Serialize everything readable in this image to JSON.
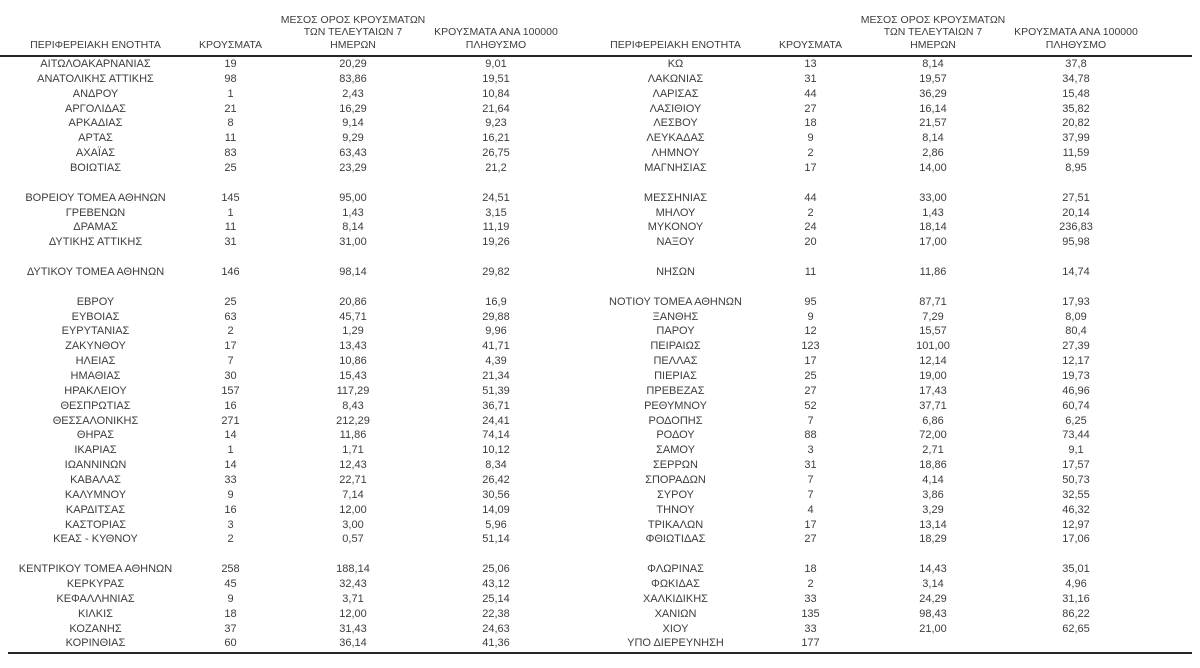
{
  "headers": {
    "region": "ΠΕΡΙΦΕΡΕΙΑΚΗ ΕΝΟΤΗΤΑ",
    "cases": "ΚΡΟΥΣΜΑΤΑ",
    "avg7_lines": [
      "ΜΕΣΟΣ ΟΡΟΣ ΚΡΟΥΣΜΑΤΩΝ",
      "ΤΩΝ ΤΕΛΕΥΤΑΙΩΝ 7",
      "ΗΜΕΡΩΝ"
    ],
    "per100k_lines": [
      "ΚΡΟΥΣΜΑΤΑ ΑΝΑ 100000",
      "ΠΛΗΘΥΣΜΟ"
    ]
  },
  "colors": {
    "text": "#3d3d3d",
    "rule": "#262626",
    "background": "#ffffff"
  },
  "left_table": {
    "rows": [
      [
        "ΑΙΤΩΛΟΑΚΑΡΝΑΝΙΑΣ",
        "19",
        "20,29",
        "9,01"
      ],
      [
        "ΑΝΑΤΟΛΙΚΗΣ ΑΤΤΙΚΗΣ",
        "98",
        "83,86",
        "19,51"
      ],
      [
        "ΑΝΔΡΟΥ",
        "1",
        "2,43",
        "10,84"
      ],
      [
        "ΑΡΓΟΛΙΔΑΣ",
        "21",
        "16,29",
        "21,64"
      ],
      [
        "ΑΡΚΑΔΙΑΣ",
        "8",
        "9,14",
        "9,23"
      ],
      [
        "ΑΡΤΑΣ",
        "11",
        "9,29",
        "16,21"
      ],
      [
        "ΑΧΑΪΑΣ",
        "83",
        "63,43",
        "26,75"
      ],
      [
        "ΒΟΙΩΤΙΑΣ",
        "25",
        "23,29",
        "21,2"
      ],
      [
        "",
        "",
        "",
        ""
      ],
      [
        "ΒΟΡΕΙΟΥ ΤΟΜΕΑ ΑΘΗΝΩΝ",
        "145",
        "95,00",
        "24,51"
      ],
      [
        "ΓΡΕΒΕΝΩΝ",
        "1",
        "1,43",
        "3,15"
      ],
      [
        "ΔΡΑΜΑΣ",
        "11",
        "8,14",
        "11,19"
      ],
      [
        "ΔΥΤΙΚΗΣ ΑΤΤΙΚΗΣ",
        "31",
        "31,00",
        "19,26"
      ],
      [
        "",
        "",
        "",
        ""
      ],
      [
        "ΔΥΤΙΚΟΥ ΤΟΜΕΑ ΑΘΗΝΩΝ",
        "146",
        "98,14",
        "29,82"
      ],
      [
        "",
        "",
        "",
        ""
      ],
      [
        "ΕΒΡΟΥ",
        "25",
        "20,86",
        "16,9"
      ],
      [
        "ΕΥΒΟΙΑΣ",
        "63",
        "45,71",
        "29,88"
      ],
      [
        "ΕΥΡΥΤΑΝΙΑΣ",
        "2",
        "1,29",
        "9,96"
      ],
      [
        "ΖΑΚΥΝΘΟΥ",
        "17",
        "13,43",
        "41,71"
      ],
      [
        "ΗΛΕΙΑΣ",
        "7",
        "10,86",
        "4,39"
      ],
      [
        "ΗΜΑΘΙΑΣ",
        "30",
        "15,43",
        "21,34"
      ],
      [
        "ΗΡΑΚΛΕΙΟΥ",
        "157",
        "117,29",
        "51,39"
      ],
      [
        "ΘΕΣΠΡΩΤΙΑΣ",
        "16",
        "8,43",
        "36,71"
      ],
      [
        "ΘΕΣΣΑΛΟΝΙΚΗΣ",
        "271",
        "212,29",
        "24,41"
      ],
      [
        "ΘΗΡΑΣ",
        "14",
        "11,86",
        "74,14"
      ],
      [
        "ΙΚΑΡΙΑΣ",
        "1",
        "1,71",
        "10,12"
      ],
      [
        "ΙΩΑΝΝΙΝΩΝ",
        "14",
        "12,43",
        "8,34"
      ],
      [
        "ΚΑΒΑΛΑΣ",
        "33",
        "22,71",
        "26,42"
      ],
      [
        "ΚΑΛΥΜΝΟΥ",
        "9",
        "7,14",
        "30,56"
      ],
      [
        "ΚΑΡΔΙΤΣΑΣ",
        "16",
        "12,00",
        "14,09"
      ],
      [
        "ΚΑΣΤΟΡΙΑΣ",
        "3",
        "3,00",
        "5,96"
      ],
      [
        "ΚΕΑΣ - ΚΥΘΝΟΥ",
        "2",
        "0,57",
        "51,14"
      ],
      [
        "",
        "",
        "",
        ""
      ],
      [
        "ΚΕΝΤΡΙΚΟΥ ΤΟΜΕΑ ΑΘΗΝΩΝ",
        "258",
        "188,14",
        "25,06"
      ],
      [
        "ΚΕΡΚΥΡΑΣ",
        "45",
        "32,43",
        "43,12"
      ],
      [
        "ΚΕΦΑΛΛΗΝΙΑΣ",
        "9",
        "3,71",
        "25,14"
      ],
      [
        "ΚΙΛΚΙΣ",
        "18",
        "12,00",
        "22,38"
      ],
      [
        "ΚΟΖΑΝΗΣ",
        "37",
        "31,43",
        "24,63"
      ],
      [
        "ΚΟΡΙΝΘΙΑΣ",
        "60",
        "36,14",
        "41,36"
      ]
    ]
  },
  "right_table": {
    "rows": [
      [
        "ΚΩ",
        "13",
        "8,14",
        "37,8"
      ],
      [
        "ΛΑΚΩΝΙΑΣ",
        "31",
        "19,57",
        "34,78"
      ],
      [
        "ΛΑΡΙΣΑΣ",
        "44",
        "36,29",
        "15,48"
      ],
      [
        "ΛΑΣΙΘΙΟΥ",
        "27",
        "16,14",
        "35,82"
      ],
      [
        "ΛΕΣΒΟΥ",
        "18",
        "21,57",
        "20,82"
      ],
      [
        "ΛΕΥΚΑΔΑΣ",
        "9",
        "8,14",
        "37,99"
      ],
      [
        "ΛΗΜΝΟΥ",
        "2",
        "2,86",
        "11,59"
      ],
      [
        "ΜΑΓΝΗΣΙΑΣ",
        "17",
        "14,00",
        "8,95"
      ],
      [
        "",
        "",
        "",
        ""
      ],
      [
        "ΜΕΣΣΗΝΙΑΣ",
        "44",
        "33,00",
        "27,51"
      ],
      [
        "ΜΗΛΟΥ",
        "2",
        "1,43",
        "20,14"
      ],
      [
        "ΜΥΚΟΝΟΥ",
        "24",
        "18,14",
        "236,83"
      ],
      [
        "ΝΑΞΟΥ",
        "20",
        "17,00",
        "95,98"
      ],
      [
        "",
        "",
        "",
        ""
      ],
      [
        "ΝΗΣΩΝ",
        "11",
        "11,86",
        "14,74"
      ],
      [
        "",
        "",
        "",
        ""
      ],
      [
        "ΝΟΤΙΟΥ ΤΟΜΕΑ ΑΘΗΝΩΝ",
        "95",
        "87,71",
        "17,93"
      ],
      [
        "ΞΑΝΘΗΣ",
        "9",
        "7,29",
        "8,09"
      ],
      [
        "ΠΑΡΟΥ",
        "12",
        "15,57",
        "80,4"
      ],
      [
        "ΠΕΙΡΑΙΩΣ",
        "123",
        "101,00",
        "27,39"
      ],
      [
        "ΠΕΛΛΑΣ",
        "17",
        "12,14",
        "12,17"
      ],
      [
        "ΠΙΕΡΙΑΣ",
        "25",
        "19,00",
        "19,73"
      ],
      [
        "ΠΡΕΒΕΖΑΣ",
        "27",
        "17,43",
        "46,96"
      ],
      [
        "ΡΕΘΥΜΝΟΥ",
        "52",
        "37,71",
        "60,74"
      ],
      [
        "ΡΟΔΟΠΗΣ",
        "7",
        "6,86",
        "6,25"
      ],
      [
        "ΡΟΔΟΥ",
        "88",
        "72,00",
        "73,44"
      ],
      [
        "ΣΑΜΟΥ",
        "3",
        "2,71",
        "9,1"
      ],
      [
        "ΣΕΡΡΩΝ",
        "31",
        "18,86",
        "17,57"
      ],
      [
        "ΣΠΟΡΑΔΩΝ",
        "7",
        "4,14",
        "50,73"
      ],
      [
        "ΣΥΡΟΥ",
        "7",
        "3,86",
        "32,55"
      ],
      [
        "ΤΗΝΟΥ",
        "4",
        "3,29",
        "46,32"
      ],
      [
        "ΤΡΙΚΑΛΩΝ",
        "17",
        "13,14",
        "12,97"
      ],
      [
        "ΦΘΙΩΤΙΔΑΣ",
        "27",
        "18,29",
        "17,06"
      ],
      [
        "",
        "",
        "",
        ""
      ],
      [
        "ΦΛΩΡΙΝΑΣ",
        "18",
        "14,43",
        "35,01"
      ],
      [
        "ΦΩΚΙΔΑΣ",
        "2",
        "3,14",
        "4,96"
      ],
      [
        "ΧΑΛΚΙΔΙΚΗΣ",
        "33",
        "24,29",
        "31,16"
      ],
      [
        "ΧΑΝΙΩΝ",
        "135",
        "98,43",
        "86,22"
      ],
      [
        "ΧΙΟΥ",
        "33",
        "21,00",
        "62,65"
      ],
      [
        "ΥΠΟ ΔΙΕΡΕΥΝΗΣΗ",
        "177",
        "",
        ""
      ]
    ]
  }
}
